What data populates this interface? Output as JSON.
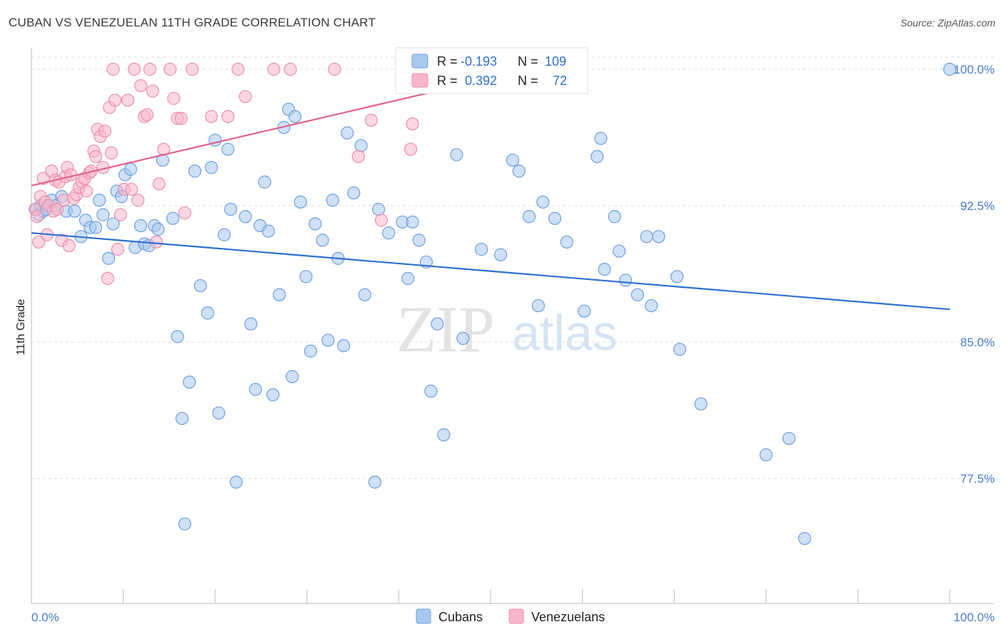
{
  "header": {
    "title": "CUBAN VS VENEZUELAN 11TH GRADE CORRELATION CHART",
    "source": "Source: ZipAtlas.com"
  },
  "watermark": {
    "zip": "ZIP",
    "atlas": "atlas"
  },
  "legend_top": {
    "rows": [
      {
        "r_label": "R = ",
        "r_value": "-0.193",
        "n_label": "N = ",
        "n_value": "109"
      },
      {
        "r_label": "R = ",
        "r_value": "0.392",
        "n_label": "N = ",
        "n_value": "72"
      }
    ]
  },
  "legend_bottom": {
    "items": [
      "Cubans",
      "Venezuelans"
    ]
  },
  "colors": {
    "cubans_fill": "#a8c8f0",
    "cubans_stroke": "#6f9fdc",
    "cubans_line": "#2f6fcf",
    "venezuelans_fill": "#f7b6cb",
    "venezuelans_stroke": "#ea8fae",
    "venezuelans_line": "#e0628e",
    "tick_text": "#4a7cc7",
    "grid": "#dedede"
  },
  "chart_data": {
    "type": "scatter",
    "title": "CUBAN VS VENEZUELAN 11TH GRADE CORRELATION CHART",
    "xlabel": "",
    "ylabel": "11th Grade",
    "xlim": [
      0,
      100
    ],
    "ylim": [
      70.0,
      101.0
    ],
    "x_tick_labels": [
      "0.0%",
      "100.0%"
    ],
    "y_ticks": [
      77.5,
      85.0,
      92.5,
      100.0
    ],
    "y_tick_labels": [
      "77.5%",
      "85.0%",
      "92.5%",
      "100.0%"
    ],
    "grid": true,
    "series": [
      {
        "name": "Cubans",
        "r": -0.193,
        "n": 109,
        "trend": {
          "x": [
            0,
            100
          ],
          "y": [
            91.0,
            86.8
          ]
        },
        "points": [
          [
            0.5,
            92.3
          ],
          [
            0.8,
            92.0
          ],
          [
            1.0,
            92.5
          ],
          [
            1.3,
            92.2
          ],
          [
            1.6,
            92.3
          ],
          [
            2.2,
            92.8
          ],
          [
            2.6,
            92.5
          ],
          [
            3.3,
            93.0
          ],
          [
            3.8,
            92.2
          ],
          [
            4.7,
            92.2
          ],
          [
            5.4,
            90.8
          ],
          [
            5.9,
            91.7
          ],
          [
            6.4,
            91.3
          ],
          [
            7.0,
            91.3
          ],
          [
            7.4,
            92.8
          ],
          [
            7.8,
            92.0
          ],
          [
            8.4,
            89.6
          ],
          [
            8.9,
            91.5
          ],
          [
            9.3,
            93.3
          ],
          [
            9.8,
            93.0
          ],
          [
            10.2,
            94.2
          ],
          [
            10.8,
            94.5
          ],
          [
            11.3,
            90.2
          ],
          [
            11.9,
            91.4
          ],
          [
            12.3,
            90.4
          ],
          [
            12.8,
            90.3
          ],
          [
            13.4,
            91.4
          ],
          [
            13.8,
            91.2
          ],
          [
            14.3,
            95.0
          ],
          [
            15.4,
            91.8
          ],
          [
            15.9,
            85.3
          ],
          [
            16.4,
            80.8
          ],
          [
            16.7,
            75.0
          ],
          [
            17.2,
            82.8
          ],
          [
            17.8,
            94.4
          ],
          [
            18.4,
            88.1
          ],
          [
            19.2,
            86.6
          ],
          [
            19.6,
            94.6
          ],
          [
            20.0,
            96.1
          ],
          [
            20.4,
            81.1
          ],
          [
            21.0,
            90.9
          ],
          [
            21.4,
            95.6
          ],
          [
            21.7,
            92.3
          ],
          [
            22.3,
            77.3
          ],
          [
            23.3,
            91.9
          ],
          [
            23.9,
            86.0
          ],
          [
            24.4,
            82.4
          ],
          [
            24.9,
            91.4
          ],
          [
            25.4,
            93.8
          ],
          [
            25.8,
            91.1
          ],
          [
            26.3,
            82.1
          ],
          [
            27.0,
            87.6
          ],
          [
            27.5,
            96.8
          ],
          [
            28.0,
            97.8
          ],
          [
            28.4,
            83.1
          ],
          [
            28.7,
            97.4
          ],
          [
            29.3,
            92.7
          ],
          [
            29.9,
            88.6
          ],
          [
            30.4,
            84.5
          ],
          [
            30.9,
            91.5
          ],
          [
            31.7,
            90.6
          ],
          [
            32.3,
            85.1
          ],
          [
            32.8,
            92.8
          ],
          [
            33.4,
            89.6
          ],
          [
            34.0,
            84.8
          ],
          [
            34.4,
            96.5
          ],
          [
            35.1,
            93.2
          ],
          [
            35.9,
            95.8
          ],
          [
            36.3,
            87.6
          ],
          [
            37.4,
            77.3
          ],
          [
            37.8,
            92.3
          ],
          [
            38.9,
            91.0
          ],
          [
            40.4,
            91.6
          ],
          [
            41.0,
            88.5
          ],
          [
            41.5,
            91.6
          ],
          [
            42.2,
            90.6
          ],
          [
            43.0,
            89.4
          ],
          [
            43.5,
            82.3
          ],
          [
            44.2,
            86.0
          ],
          [
            44.9,
            79.9
          ],
          [
            46.3,
            95.3
          ],
          [
            47.0,
            85.2
          ],
          [
            49.0,
            90.1
          ],
          [
            51.1,
            89.8
          ],
          [
            52.4,
            95.0
          ],
          [
            53.1,
            94.4
          ],
          [
            54.2,
            91.9
          ],
          [
            55.2,
            87.0
          ],
          [
            55.7,
            92.7
          ],
          [
            57.0,
            91.8
          ],
          [
            58.3,
            90.5
          ],
          [
            60.2,
            86.7
          ],
          [
            61.6,
            95.2
          ],
          [
            62.0,
            96.2
          ],
          [
            62.4,
            89.0
          ],
          [
            63.5,
            91.9
          ],
          [
            64.0,
            90.0
          ],
          [
            64.7,
            88.4
          ],
          [
            66.0,
            87.6
          ],
          [
            67.0,
            90.8
          ],
          [
            67.5,
            87.0
          ],
          [
            68.3,
            90.8
          ],
          [
            70.3,
            88.6
          ],
          [
            70.6,
            84.6
          ],
          [
            72.9,
            81.6
          ],
          [
            80.0,
            78.8
          ],
          [
            82.5,
            79.7
          ],
          [
            84.2,
            74.2
          ],
          [
            100.0,
            100.0
          ]
        ]
      },
      {
        "name": "Venezuelans",
        "r": 0.392,
        "n": 72,
        "trend": {
          "x": [
            0,
            50
          ],
          "y": [
            93.6,
            99.5
          ]
        },
        "points": [
          [
            0.4,
            92.3
          ],
          [
            0.6,
            91.9
          ],
          [
            0.8,
            90.5
          ],
          [
            1.0,
            93.0
          ],
          [
            1.3,
            94.0
          ],
          [
            1.5,
            92.7
          ],
          [
            1.7,
            90.9
          ],
          [
            1.9,
            92.5
          ],
          [
            2.2,
            94.4
          ],
          [
            2.4,
            92.2
          ],
          [
            2.6,
            93.9
          ],
          [
            2.8,
            92.3
          ],
          [
            3.0,
            93.8
          ],
          [
            3.3,
            90.6
          ],
          [
            3.5,
            92.8
          ],
          [
            3.7,
            94.1
          ],
          [
            3.9,
            94.6
          ],
          [
            4.1,
            90.3
          ],
          [
            4.3,
            94.2
          ],
          [
            4.6,
            92.9
          ],
          [
            4.9,
            93.1
          ],
          [
            5.2,
            93.5
          ],
          [
            5.5,
            93.8
          ],
          [
            5.8,
            94.0
          ],
          [
            6.0,
            93.3
          ],
          [
            6.3,
            94.3
          ],
          [
            6.5,
            94.4
          ],
          [
            6.8,
            95.5
          ],
          [
            7.0,
            95.2
          ],
          [
            7.2,
            96.7
          ],
          [
            7.5,
            96.3
          ],
          [
            7.8,
            94.6
          ],
          [
            8.0,
            96.6
          ],
          [
            8.3,
            88.5
          ],
          [
            8.5,
            97.9
          ],
          [
            8.7,
            95.4
          ],
          [
            8.9,
            100.0
          ],
          [
            9.1,
            98.3
          ],
          [
            9.4,
            90.1
          ],
          [
            9.7,
            92.0
          ],
          [
            10.1,
            93.4
          ],
          [
            10.5,
            98.3
          ],
          [
            10.9,
            93.4
          ],
          [
            11.2,
            100.0
          ],
          [
            11.6,
            92.8
          ],
          [
            11.9,
            99.1
          ],
          [
            12.3,
            97.4
          ],
          [
            12.6,
            97.5
          ],
          [
            12.9,
            100.0
          ],
          [
            13.2,
            98.8
          ],
          [
            13.6,
            90.5
          ],
          [
            13.9,
            93.7
          ],
          [
            14.4,
            95.6
          ],
          [
            15.1,
            100.0
          ],
          [
            15.5,
            98.4
          ],
          [
            15.9,
            97.3
          ],
          [
            16.3,
            97.3
          ],
          [
            16.7,
            92.1
          ],
          [
            17.5,
            100.0
          ],
          [
            19.6,
            97.4
          ],
          [
            21.4,
            97.4
          ],
          [
            22.5,
            100.0
          ],
          [
            23.3,
            98.5
          ],
          [
            26.4,
            100.0
          ],
          [
            28.2,
            100.0
          ],
          [
            33.0,
            100.0
          ],
          [
            35.6,
            95.2
          ],
          [
            37.0,
            97.2
          ],
          [
            38.1,
            91.7
          ],
          [
            41.3,
            95.6
          ],
          [
            41.5,
            97.0
          ],
          [
            48.0,
            100.0
          ]
        ]
      }
    ]
  }
}
